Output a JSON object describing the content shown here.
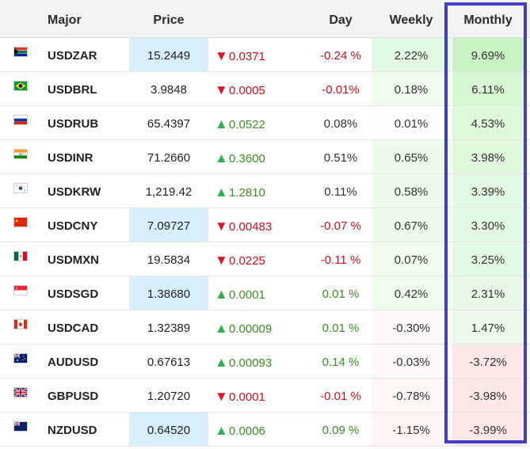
{
  "columns": {
    "major": "Major",
    "price": "Price",
    "day": "Day",
    "weekly": "Weekly",
    "monthly": "Monthly"
  },
  "colors": {
    "up_arrow": "#2fb152",
    "down_arrow": "#d8172a",
    "price_highlight": "#d7eefb",
    "positive_heat": "#c9f2c2",
    "negative_heat": "#fcdcdc",
    "highlight_frame": "#3f3ec4"
  },
  "rows": [
    {
      "flag": "flag-south-africa-icon",
      "symbol": "USDZAR",
      "price": "15.2449",
      "price_highlight": true,
      "direction": "down",
      "change": "0.0371",
      "day": "-0.24 %",
      "weekly": "2.22%",
      "monthly": "9.69%",
      "weekly_heat": 0.35,
      "monthly_heat": 1.0
    },
    {
      "flag": "flag-brazil-icon",
      "symbol": "USDBRL",
      "price": "3.9848",
      "price_highlight": false,
      "direction": "down",
      "change": "0.0005",
      "day": "-0.01%",
      "weekly": "0.18%",
      "monthly": "6.11%",
      "weekly_heat": 0.05,
      "monthly_heat": 0.6
    },
    {
      "flag": "flag-russia-icon",
      "symbol": "USDRUB",
      "price": "65.4397",
      "price_highlight": false,
      "direction": "up",
      "change": "0.0522",
      "day": "0.08%",
      "weekly": "0.01%",
      "monthly": "4.53%",
      "weekly_heat": 0.0,
      "monthly_heat": 0.45
    },
    {
      "flag": "flag-india-icon",
      "symbol": "USDINR",
      "price": "71.2660",
      "price_highlight": false,
      "direction": "up",
      "change": "0.3600",
      "day": "0.51%",
      "weekly": "0.65%",
      "monthly": "3.98%",
      "weekly_heat": 0.1,
      "monthly_heat": 0.4
    },
    {
      "flag": "flag-south-korea-icon",
      "symbol": "USDKRW",
      "price": "1,219.42",
      "price_highlight": false,
      "direction": "up",
      "change": "1.2810",
      "day": "0.11%",
      "weekly": "0.58%",
      "monthly": "3.39%",
      "weekly_heat": 0.1,
      "monthly_heat": 0.35
    },
    {
      "flag": "flag-china-icon",
      "symbol": "USDCNY",
      "price": "7.09727",
      "price_highlight": true,
      "direction": "down",
      "change": "0.00483",
      "day": "-0.07 %",
      "weekly": "0.67%",
      "monthly": "3.30%",
      "weekly_heat": 0.1,
      "monthly_heat": 0.33
    },
    {
      "flag": "flag-mexico-icon",
      "symbol": "USDMXN",
      "price": "19.5834",
      "price_highlight": false,
      "direction": "down",
      "change": "0.0225",
      "day": "-0.11 %",
      "weekly": "0.07%",
      "monthly": "3.25%",
      "weekly_heat": 0.02,
      "monthly_heat": 0.33
    },
    {
      "flag": "flag-singapore-icon",
      "symbol": "USDSGD",
      "price": "1.38680",
      "price_highlight": true,
      "direction": "up",
      "change": "0.0001",
      "day": "0.01 %",
      "weekly": "0.42%",
      "monthly": "2.31%",
      "weekly_heat": 0.06,
      "monthly_heat": 0.25
    },
    {
      "flag": "flag-canada-icon",
      "symbol": "USDCAD",
      "price": "1.32389",
      "price_highlight": false,
      "direction": "up",
      "change": "0.00009",
      "day": "0.01 %",
      "weekly": "-0.30%",
      "monthly": "1.47%",
      "weekly_heat": -0.05,
      "monthly_heat": 0.15
    },
    {
      "flag": "flag-australia-icon",
      "symbol": "AUDUSD",
      "price": "0.67613",
      "price_highlight": false,
      "direction": "up",
      "change": "0.00093",
      "day": "0.14 %",
      "weekly": "-0.03%",
      "monthly": "-3.72%",
      "weekly_heat": -0.01,
      "monthly_heat": -0.6
    },
    {
      "flag": "flag-united-kingdom-icon",
      "symbol": "GBPUSD",
      "price": "1.20720",
      "price_highlight": false,
      "direction": "down",
      "change": "0.0001",
      "day": "-0.01 %",
      "weekly": "-0.78%",
      "monthly": "-3.98%",
      "weekly_heat": -0.12,
      "monthly_heat": -0.65
    },
    {
      "flag": "flag-new-zealand-icon",
      "symbol": "NZDUSD",
      "price": "0.64520",
      "price_highlight": true,
      "direction": "up",
      "change": "0.0006",
      "day": "0.09 %",
      "weekly": "-1.15%",
      "monthly": "-3.99%",
      "weekly_heat": -0.18,
      "monthly_heat": -0.65
    }
  ]
}
